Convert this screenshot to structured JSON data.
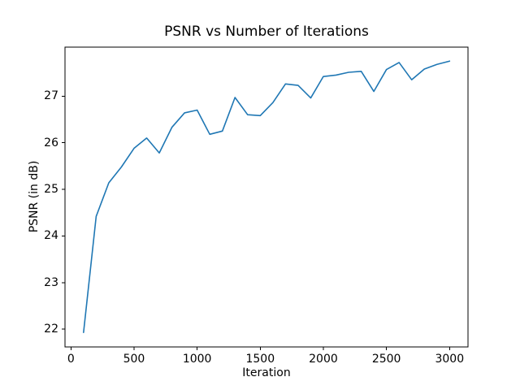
{
  "chart_data": {
    "type": "line",
    "title": "PSNR vs Number of Iterations",
    "xlabel": "Iteration",
    "ylabel": "PSNR (in dB)",
    "x_ticks": [
      0,
      500,
      1000,
      1500,
      2000,
      2500,
      3000
    ],
    "y_ticks": [
      22,
      23,
      24,
      25,
      26,
      27
    ],
    "xlim": [
      -47,
      3146
    ],
    "ylim": [
      21.62,
      28.05
    ],
    "grid": false,
    "legend": null,
    "line_color": "#1f77b4",
    "axis_color": "#000000",
    "background_color": "#ffffff",
    "series": [
      {
        "name": "PSNR",
        "x": [
          100,
          200,
          300,
          400,
          500,
          600,
          700,
          800,
          900,
          1000,
          1100,
          1200,
          1300,
          1400,
          1500,
          1600,
          1700,
          1800,
          1900,
          2000,
          2100,
          2200,
          2300,
          2400,
          2500,
          2600,
          2700,
          2800,
          2900,
          3000
        ],
        "y": [
          21.93,
          24.42,
          25.14,
          25.48,
          25.88,
          26.1,
          25.78,
          26.33,
          26.64,
          26.7,
          26.18,
          26.25,
          26.97,
          26.6,
          26.58,
          26.86,
          27.26,
          27.23,
          26.96,
          27.42,
          27.45,
          27.51,
          27.53,
          27.1,
          27.57,
          27.72,
          27.35,
          27.58,
          27.68,
          27.75
        ]
      }
    ]
  }
}
